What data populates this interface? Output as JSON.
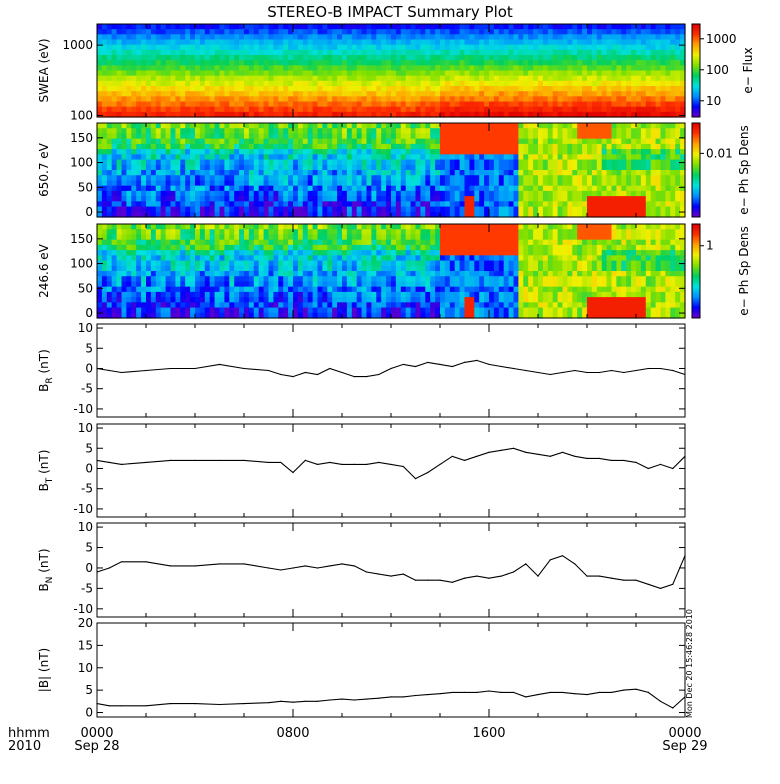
{
  "title": "STEREO-B IMPACT Summary Plot",
  "time_axis": {
    "corner_labels": [
      "hhmm",
      "2010"
    ],
    "ticks": [
      {
        "label": "0000",
        "sub": "Sep 28",
        "hour": 0
      },
      {
        "label": "0800",
        "sub": "",
        "hour": 8
      },
      {
        "label": "1600",
        "sub": "",
        "hour": 16
      },
      {
        "label": "0000",
        "sub": "Sep 29",
        "hour": 24
      }
    ],
    "range_hours": [
      0,
      24
    ]
  },
  "timestamp_vertical": "Mon Dec 20 15:46:28 2010",
  "colors": {
    "spectrogram_scale": [
      "#6a00c8",
      "#0000ff",
      "#0090ff",
      "#00e0e0",
      "#00d060",
      "#80e000",
      "#f0f000",
      "#ffa000",
      "#ff3000",
      "#e00000"
    ]
  },
  "chart_data": [
    {
      "type": "heatmap",
      "id": "swea",
      "ylabel": "SWEA (eV)",
      "yscale": "log",
      "ylim": [
        95,
        2000
      ],
      "yticks": [
        {
          "v": 1000,
          "label": "1000"
        },
        {
          "v": 100,
          "label": "100"
        }
      ],
      "colorbar": {
        "label": "e− Flux",
        "scale": "log",
        "range": [
          3,
          3000
        ],
        "ticks": [
          {
            "v": 1000,
            "label": "1000"
          },
          {
            "v": 100,
            "label": "100"
          },
          {
            "v": 10,
            "label": "10"
          }
        ]
      }
    },
    {
      "type": "heatmap",
      "id": "pad650",
      "ylabel": "650.7 eV",
      "ylim": [
        -10,
        180
      ],
      "yticks": [
        {
          "v": 150,
          "label": "150"
        },
        {
          "v": 100,
          "label": "100"
        },
        {
          "v": 50,
          "label": "50"
        },
        {
          "v": 0,
          "label": "0"
        }
      ],
      "colorbar": {
        "label": "e− Ph Sp Dens",
        "scale": "log",
        "range": [
          0.001,
          0.03
        ],
        "ticks": [
          {
            "v": 0.01,
            "label": "0.01"
          }
        ]
      }
    },
    {
      "type": "heatmap",
      "id": "pad246",
      "ylabel": "246.6 eV",
      "ylim": [
        -10,
        180
      ],
      "yticks": [
        {
          "v": 150,
          "label": "150"
        },
        {
          "v": 100,
          "label": "100"
        },
        {
          "v": 50,
          "label": "50"
        },
        {
          "v": 0,
          "label": "0"
        }
      ],
      "colorbar": {
        "label": "e− Ph Sp Dens",
        "scale": "log",
        "range": [
          0.1,
          2
        ],
        "ticks": [
          {
            "v": 1,
            "label": "1"
          }
        ]
      }
    },
    {
      "type": "line",
      "id": "br",
      "ylabel": {
        "main": "B",
        "sub": "R",
        "unit": " (nT)"
      },
      "ylim": [
        -12,
        11
      ],
      "yticks": [
        10,
        5,
        0,
        -5,
        -10
      ],
      "x": [
        0,
        0.5,
        1,
        2,
        3,
        4,
        5,
        6,
        7,
        7.5,
        8,
        8.5,
        9,
        9.5,
        10,
        10.5,
        11,
        11.5,
        12,
        12.5,
        13,
        13.5,
        14,
        14.5,
        15,
        15.5,
        16,
        16.5,
        17,
        17.5,
        18,
        18.5,
        19,
        19.5,
        20,
        20.5,
        21,
        21.5,
        22,
        22.5,
        23,
        23.5,
        24
      ],
      "y": [
        0,
        -0.5,
        -1,
        -0.5,
        0,
        0,
        1,
        0,
        -0.5,
        -1.5,
        -2,
        -1,
        -1.5,
        0,
        -1,
        -2,
        -2,
        -1.5,
        0,
        1,
        0.5,
        1.5,
        1,
        0.5,
        1.5,
        2,
        1,
        0.5,
        0,
        -0.5,
        -1,
        -1.5,
        -1,
        -0.5,
        -1,
        -1,
        -0.5,
        -1,
        -0.5,
        0,
        0,
        -0.5,
        -1.5
      ]
    },
    {
      "type": "line",
      "id": "bt",
      "ylabel": {
        "main": "B",
        "sub": "T",
        "unit": " (nT)"
      },
      "ylim": [
        -12,
        11
      ],
      "yticks": [
        10,
        5,
        0,
        -5,
        -10
      ],
      "x": [
        0,
        0.5,
        1,
        2,
        3,
        4,
        5,
        6,
        7,
        7.5,
        8,
        8.5,
        9,
        9.5,
        10,
        10.5,
        11,
        11.5,
        12,
        12.5,
        13,
        13.5,
        14,
        14.5,
        15,
        15.5,
        16,
        16.5,
        17,
        17.5,
        18,
        18.5,
        19,
        19.5,
        20,
        20.5,
        21,
        21.5,
        22,
        22.5,
        23,
        23.5,
        24
      ],
      "y": [
        2,
        1.5,
        1,
        1.5,
        2,
        2,
        2,
        2,
        1.5,
        1.5,
        -1,
        2,
        1,
        1.5,
        1,
        1,
        1,
        1.5,
        1,
        0.5,
        -2.5,
        -1,
        1,
        3,
        2,
        3,
        4,
        4.5,
        5,
        4,
        3.5,
        3,
        4,
        3,
        2.5,
        2.5,
        2,
        2,
        1.5,
        0,
        1,
        0,
        3
      ]
    },
    {
      "type": "line",
      "id": "bn",
      "ylabel": {
        "main": "B",
        "sub": "N",
        "unit": " (nT)"
      },
      "ylim": [
        -12,
        11
      ],
      "yticks": [
        10,
        5,
        0,
        -5,
        -10
      ],
      "x": [
        0,
        0.5,
        1,
        2,
        3,
        4,
        5,
        6,
        7,
        7.5,
        8,
        8.5,
        9,
        9.5,
        10,
        10.5,
        11,
        11.5,
        12,
        12.5,
        13,
        13.5,
        14,
        14.5,
        15,
        15.5,
        16,
        16.5,
        17,
        17.5,
        18,
        18.5,
        19,
        19.5,
        20,
        20.5,
        21,
        21.5,
        22,
        22.5,
        23,
        23.5,
        24
      ],
      "y": [
        -1,
        0,
        1.5,
        1.5,
        0.5,
        0.5,
        1,
        1,
        0,
        -0.5,
        0,
        0.5,
        0,
        0.5,
        1,
        0.5,
        -1,
        -1.5,
        -2,
        -1.5,
        -3,
        -3,
        -3,
        -3.5,
        -2.5,
        -2,
        -2.5,
        -2,
        -1,
        1,
        -2,
        2,
        3,
        1,
        -2,
        -2,
        -2.5,
        -3,
        -3,
        -4,
        -5,
        -4,
        3
      ]
    },
    {
      "type": "line",
      "id": "bmag",
      "ylabel": {
        "main": "|B|",
        "sub": "",
        "unit": " (nT)"
      },
      "ylim": [
        -1,
        20
      ],
      "yticks": [
        20,
        15,
        10,
        5,
        0
      ],
      "x": [
        0,
        0.5,
        1,
        2,
        3,
        4,
        5,
        6,
        7,
        7.5,
        8,
        8.5,
        9,
        9.5,
        10,
        10.5,
        11,
        11.5,
        12,
        12.5,
        13,
        13.5,
        14,
        14.5,
        15,
        15.5,
        16,
        16.5,
        17,
        17.5,
        18,
        18.5,
        19,
        19.5,
        20,
        20.5,
        21,
        21.5,
        22,
        22.5,
        23,
        23.5,
        24
      ],
      "y": [
        2,
        1.5,
        1.5,
        1.5,
        2,
        2,
        1.8,
        2,
        2.2,
        2.5,
        2.3,
        2.5,
        2.5,
        2.8,
        3,
        2.8,
        3,
        3.2,
        3.5,
        3.5,
        3.8,
        4,
        4.2,
        4.5,
        4.5,
        4.5,
        4.8,
        4.5,
        4.5,
        3.5,
        4,
        4.5,
        4.5,
        4.2,
        4,
        4.5,
        4.5,
        5,
        5.2,
        4.5,
        2.5,
        1,
        3.5
      ]
    }
  ]
}
